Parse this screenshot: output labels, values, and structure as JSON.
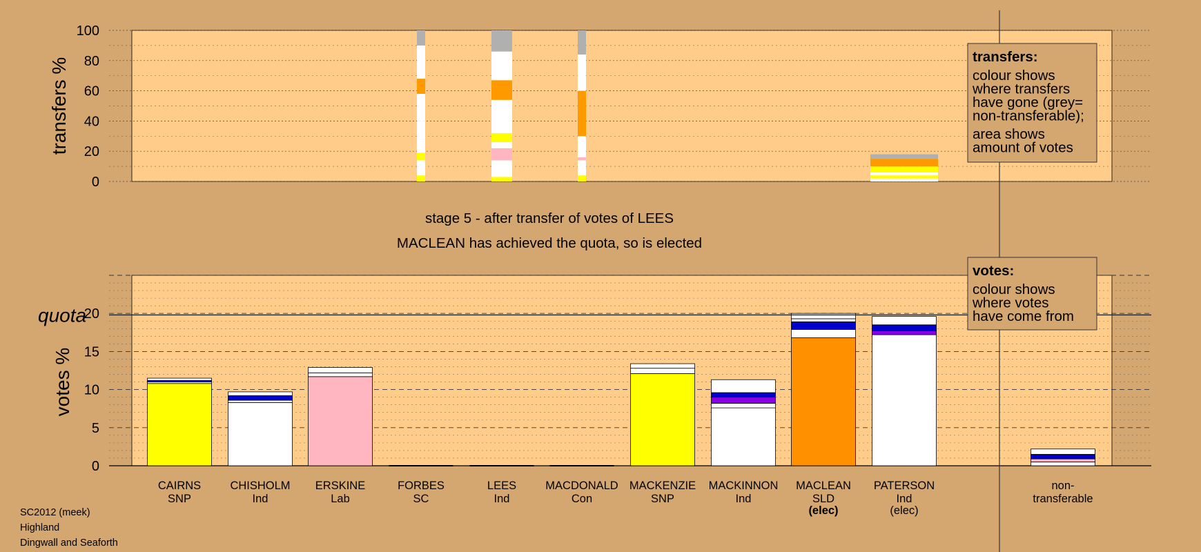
{
  "chart_data": {
    "type": "bar",
    "stacked": true,
    "stage_title": "stage 5 - after transfer of votes of LEES",
    "stage_subtitle": "MACLEAN has achieved the quota, so is elected",
    "transfers_chart": {
      "ylabel": "transfers %",
      "ylim": [
        0,
        100
      ],
      "yticks": [
        "0",
        "20",
        "40",
        "60",
        "80",
        "100"
      ],
      "bars": [
        {
          "candidate": "FORBES",
          "segments": [
            [
              0,
              4,
              "#FFFF00"
            ],
            [
              4,
              14,
              "#FFFFFF"
            ],
            [
              14,
              19,
              "#FFFF00"
            ],
            [
              19,
              28,
              "#FFFFFF"
            ],
            [
              28,
              40,
              "#FFFFFF"
            ],
            [
              40,
              58,
              "#FFFFFF"
            ],
            [
              58,
              68,
              "#FF9900"
            ],
            [
              68,
              90,
              "#FFFFFF"
            ],
            [
              90,
              100,
              "#B0B0B0"
            ]
          ]
        },
        {
          "candidate": "LEES",
          "segments": [
            [
              0,
              3,
              "#FFFF00"
            ],
            [
              3,
              14,
              "#FFFFFF"
            ],
            [
              14,
              22,
              "#FFB6C1"
            ],
            [
              22,
              26,
              "#FFFFFF"
            ],
            [
              26,
              32,
              "#FFFF00"
            ],
            [
              32,
              54,
              "#FFFFFF"
            ],
            [
              54,
              67,
              "#FF9900"
            ],
            [
              67,
              86,
              "#FFFFFF"
            ],
            [
              86,
              100,
              "#B0B0B0"
            ]
          ]
        },
        {
          "candidate": "MACDONALD",
          "segments": [
            [
              0,
              4,
              "#FFFF00"
            ],
            [
              4,
              14,
              "#FFFFFF"
            ],
            [
              14,
              16,
              "#FFB6C1"
            ],
            [
              16,
              30,
              "#FFFFFF"
            ],
            [
              30,
              60,
              "#FF9900"
            ],
            [
              60,
              84,
              "#FFFFFF"
            ],
            [
              84,
              100,
              "#B0B0B0"
            ]
          ]
        },
        {
          "candidate": "PATERSON",
          "segments": [
            [
              0,
              2,
              "#FFFFFF"
            ],
            [
              2,
              4,
              "#FFFF00"
            ],
            [
              4,
              6,
              "#FFFFFF"
            ],
            [
              6,
              10,
              "#FFFF00"
            ],
            [
              10,
              15,
              "#FF9900"
            ],
            [
              15,
              18,
              "#B0B0B0"
            ]
          ]
        }
      ]
    },
    "votes_chart": {
      "ylabel": "votes %",
      "ylim": [
        0,
        25
      ],
      "yticks": [
        "0",
        "5",
        "10",
        "15",
        "20"
      ],
      "quota": 19.8,
      "quota_label": "quota",
      "bars": [
        {
          "candidate": "CAIRNS",
          "party": "SNP",
          "segments": [
            [
              0,
              10.8,
              "#FFFF00"
            ],
            [
              10.8,
              11.0,
              "#FFFFFF"
            ],
            [
              11.0,
              11.2,
              "#0000CC"
            ],
            [
              11.2,
              11.5,
              "#FFFFFF"
            ]
          ]
        },
        {
          "candidate": "CHISHOLM",
          "party": "Ind",
          "segments": [
            [
              0,
              8.3,
              "#FFFFFF"
            ],
            [
              8.3,
              8.6,
              "#FFFFFF"
            ],
            [
              8.6,
              9.2,
              "#0000CC"
            ],
            [
              9.2,
              9.7,
              "#FFFFFF"
            ]
          ]
        },
        {
          "candidate": "ERSKINE",
          "party": "Lab",
          "segments": [
            [
              0,
              11.7,
              "#FFB6C1"
            ],
            [
              11.7,
              12.2,
              "#FFFFFF"
            ],
            [
              12.2,
              12.9,
              "#FFFFFF"
            ]
          ]
        },
        {
          "candidate": "FORBES",
          "party": "SC",
          "segments": []
        },
        {
          "candidate": "LEES",
          "party": "Ind",
          "segments": []
        },
        {
          "candidate": "MACDONALD",
          "party": "Con",
          "segments": []
        },
        {
          "candidate": "MACKENZIE",
          "party": "SNP",
          "segments": [
            [
              0,
              12.1,
              "#FFFF00"
            ],
            [
              12.1,
              12.8,
              "#FFFFFF"
            ],
            [
              12.8,
              13.4,
              "#FFFFFF"
            ]
          ]
        },
        {
          "candidate": "MACKINNON",
          "party": "Ind",
          "segments": [
            [
              0,
              7.6,
              "#FFFFFF"
            ],
            [
              7.6,
              8.2,
              "#FFFFFF"
            ],
            [
              8.2,
              9.0,
              "#8A00E6"
            ],
            [
              9.0,
              9.6,
              "#0000CC"
            ],
            [
              9.6,
              11.3,
              "#FFFFFF"
            ]
          ]
        },
        {
          "candidate": "MACLEAN",
          "party": "SLD",
          "status": "(elec)",
          "status_bold": true,
          "segments": [
            [
              0,
              16.8,
              "#FF9100"
            ],
            [
              16.8,
              17.9,
              "#FFFFFF"
            ],
            [
              17.9,
              18.9,
              "#0000CC"
            ],
            [
              18.9,
              19.3,
              "#FFFFFF"
            ],
            [
              19.3,
              20.0,
              "#FFFFFF"
            ]
          ]
        },
        {
          "candidate": "PATERSON",
          "party": "Ind",
          "status": "(elec)",
          "status_bold": false,
          "segments": [
            [
              0,
              17.2,
              "#FFFFFF"
            ],
            [
              17.2,
              17.7,
              "#8A00E6"
            ],
            [
              17.7,
              18.5,
              "#0000CC"
            ],
            [
              18.5,
              19.6,
              "#FFFFFF"
            ]
          ]
        }
      ],
      "nontransferable": {
        "label_lines": [
          "non-",
          "transferable"
        ],
        "segments": [
          [
            0,
            0.5,
            "#FFFFFF"
          ],
          [
            0.5,
            0.9,
            "#FFB6C1"
          ],
          [
            0.9,
            1.5,
            "#0000CC"
          ],
          [
            1.5,
            2.2,
            "#FFFFFF"
          ]
        ]
      }
    },
    "legend_transfers": {
      "title": "transfers:",
      "lines": [
        "colour shows",
        "where transfers",
        "have gone (grey=",
        "non-transferable);",
        "area shows",
        "amount of votes"
      ]
    },
    "legend_votes": {
      "title": "votes:",
      "lines": [
        "colour shows",
        "where votes",
        "have come from"
      ]
    },
    "footer": [
      "SC2012 (meek)",
      "Highland",
      "Dingwall and Seaforth"
    ]
  }
}
